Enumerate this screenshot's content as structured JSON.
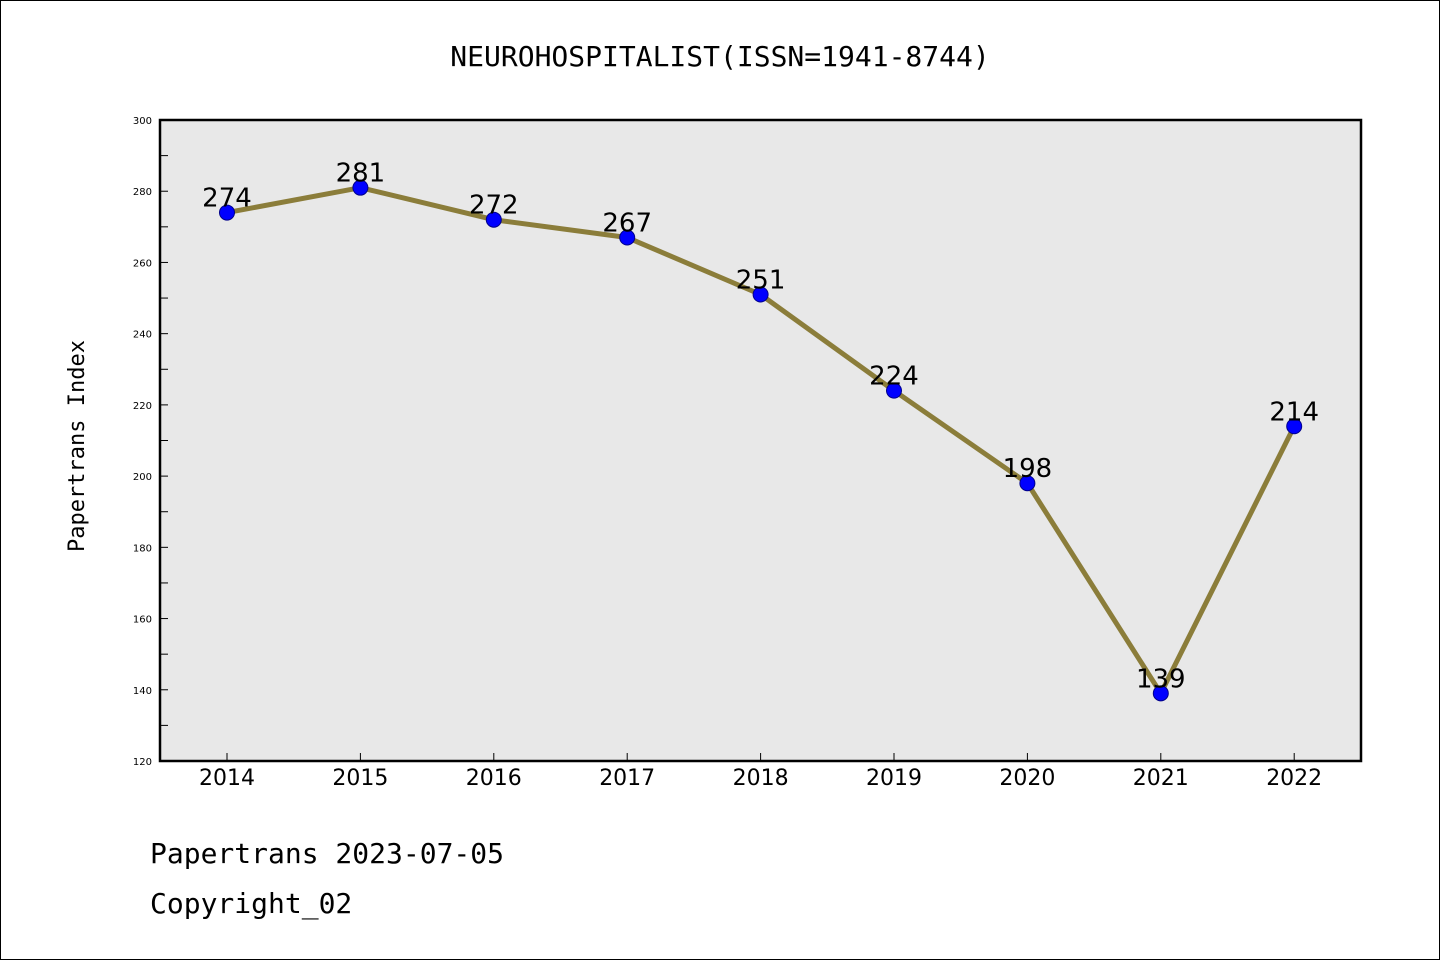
{
  "chart_data": {
    "type": "line",
    "title": "NEUROHOSPITALIST(ISSN=1941-8744)",
    "ylabel": "Papertrans Index",
    "xlabel": "",
    "categories": [
      "2014",
      "2015",
      "2016",
      "2017",
      "2018",
      "2019",
      "2020",
      "2021",
      "2022"
    ],
    "values": [
      274,
      281,
      272,
      267,
      251,
      224,
      198,
      139,
      214
    ],
    "ylim": [
      120,
      300
    ],
    "yticks": [
      120,
      140,
      160,
      180,
      200,
      220,
      240,
      260,
      280,
      300
    ],
    "grid": false,
    "line_color": "#8b7d3a",
    "marker_color": "#0000ff",
    "plot_background": "#e8e8e8"
  },
  "footer": {
    "line1": "Papertrans 2023-07-05",
    "line2": "Copyright_02"
  }
}
